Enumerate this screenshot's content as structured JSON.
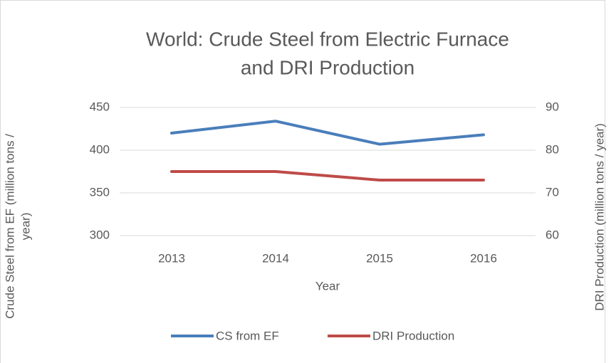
{
  "chart_data": {
    "type": "line",
    "title": [
      "World: Crude Steel from Electric Furnace",
      "and DRI Production"
    ],
    "xlabel": "Year",
    "ylabel": [
      "Crude Steel from EF (million tons /",
      "year)"
    ],
    "y2label": "DRI Production (million tons / year)",
    "categories": [
      "2013",
      "2014",
      "2015",
      "2016"
    ],
    "series": [
      {
        "name": "CS from EF",
        "color": "#4a7ebb",
        "values": [
          420,
          434,
          407,
          418
        ]
      },
      {
        "name": "DRI Production",
        "color": "#be4b48",
        "values": [
          75,
          75,
          73,
          73
        ],
        "axis": "y2"
      }
    ],
    "ylim": [
      300,
      450
    ],
    "yticks": [
      300,
      350,
      400,
      450
    ],
    "y2lim": [
      60,
      90
    ],
    "y2ticks": [
      60,
      70,
      80,
      90
    ],
    "grid": true,
    "legend": "bottom"
  }
}
